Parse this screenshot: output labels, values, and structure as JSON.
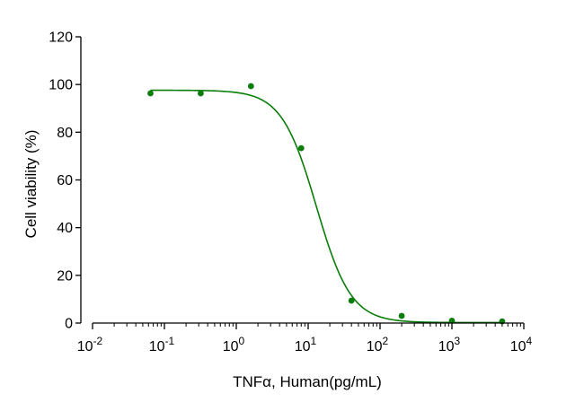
{
  "chart_data": {
    "type": "scatter",
    "title": "",
    "xlabel": "TNFα, Human(pg/mL)",
    "ylabel": "Cell viability (%)",
    "x_scale": "log",
    "xlim": [
      0.01,
      10000
    ],
    "ylim": [
      0,
      120
    ],
    "x_ticks": [
      {
        "value": 0.01,
        "base": "10",
        "exp": "-2"
      },
      {
        "value": 0.1,
        "base": "10",
        "exp": "-1"
      },
      {
        "value": 1,
        "base": "10",
        "exp": "0"
      },
      {
        "value": 10,
        "base": "10",
        "exp": "1"
      },
      {
        "value": 100,
        "base": "10",
        "exp": "2"
      },
      {
        "value": 1000,
        "base": "10",
        "exp": "3"
      },
      {
        "value": 10000,
        "base": "10",
        "exp": "4"
      }
    ],
    "y_ticks": [
      {
        "value": 0,
        "label": "0"
      },
      {
        "value": 20,
        "label": "20"
      },
      {
        "value": 40,
        "label": "40"
      },
      {
        "value": 60,
        "label": "60"
      },
      {
        "value": 80,
        "label": "80"
      },
      {
        "value": 100,
        "label": "100"
      },
      {
        "value": 120,
        "label": "120"
      }
    ],
    "grid": false,
    "legend": "none",
    "series": [
      {
        "color": "#0a7d0a",
        "x": [
          0.064,
          0.32,
          1.6,
          8,
          40,
          200,
          1000,
          5000
        ],
        "y": [
          96.3,
          96.3,
          99.3,
          73.3,
          9.4,
          3.0,
          1.0,
          0.7
        ]
      }
    ],
    "fit_curve": {
      "color": "#0a7d0a",
      "model": "4PL",
      "top": 97.6,
      "bottom": 0.2,
      "ec50": 13,
      "hill": 1.8
    }
  }
}
